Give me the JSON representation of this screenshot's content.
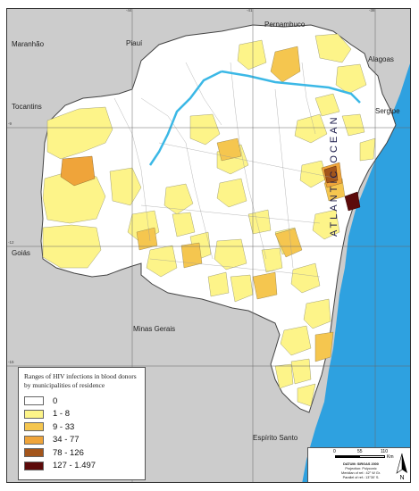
{
  "neighbors": {
    "pernambuco": "Pernambuco",
    "maranhao": "Maranhão",
    "piaui": "Piauí",
    "alagoas": "Alagoas",
    "tocantins": "Tocantins",
    "sergipe": "Sergipe",
    "goias": "Goiás",
    "minas_gerais": "Minas Gerais",
    "espirito_santo": "Espírito Santo"
  },
  "ocean_label": "ATLANTIC OCEAN",
  "graticule": {
    "top": [
      "-44",
      "-41",
      "-38"
    ],
    "left": [
      "-9",
      "-12",
      "-15"
    ]
  },
  "legend": {
    "title": "Ranges of HIV infections in blood donors by municipalities of residence",
    "classes": [
      {
        "label": "0",
        "color": "#ffffff"
      },
      {
        "label": "1 - 8",
        "color": "#fdf489"
      },
      {
        "label": "9 - 33",
        "color": "#f5c64f"
      },
      {
        "label": "34 - 77",
        "color": "#efa43a"
      },
      {
        "label": "78 - 126",
        "color": "#a3551b"
      },
      {
        "label": "127 - 1.497",
        "color": "#5c0a0a"
      }
    ]
  },
  "scale": {
    "zero": "0",
    "mid": "55",
    "max": "110",
    "unit": "Km",
    "projection_lines": [
      "DATUM: SIRGAS 2000",
      "Projection: Polyconic",
      "Meridian of ref.: 42° W Gr.",
      "Parallel of ref.: 13°30' S."
    ],
    "north_letter": "N"
  },
  "colors": {
    "ocean": "#2ea1e0",
    "neighbor_states": "#cccccc",
    "river": "#3bb8e6",
    "border": "#777777"
  }
}
